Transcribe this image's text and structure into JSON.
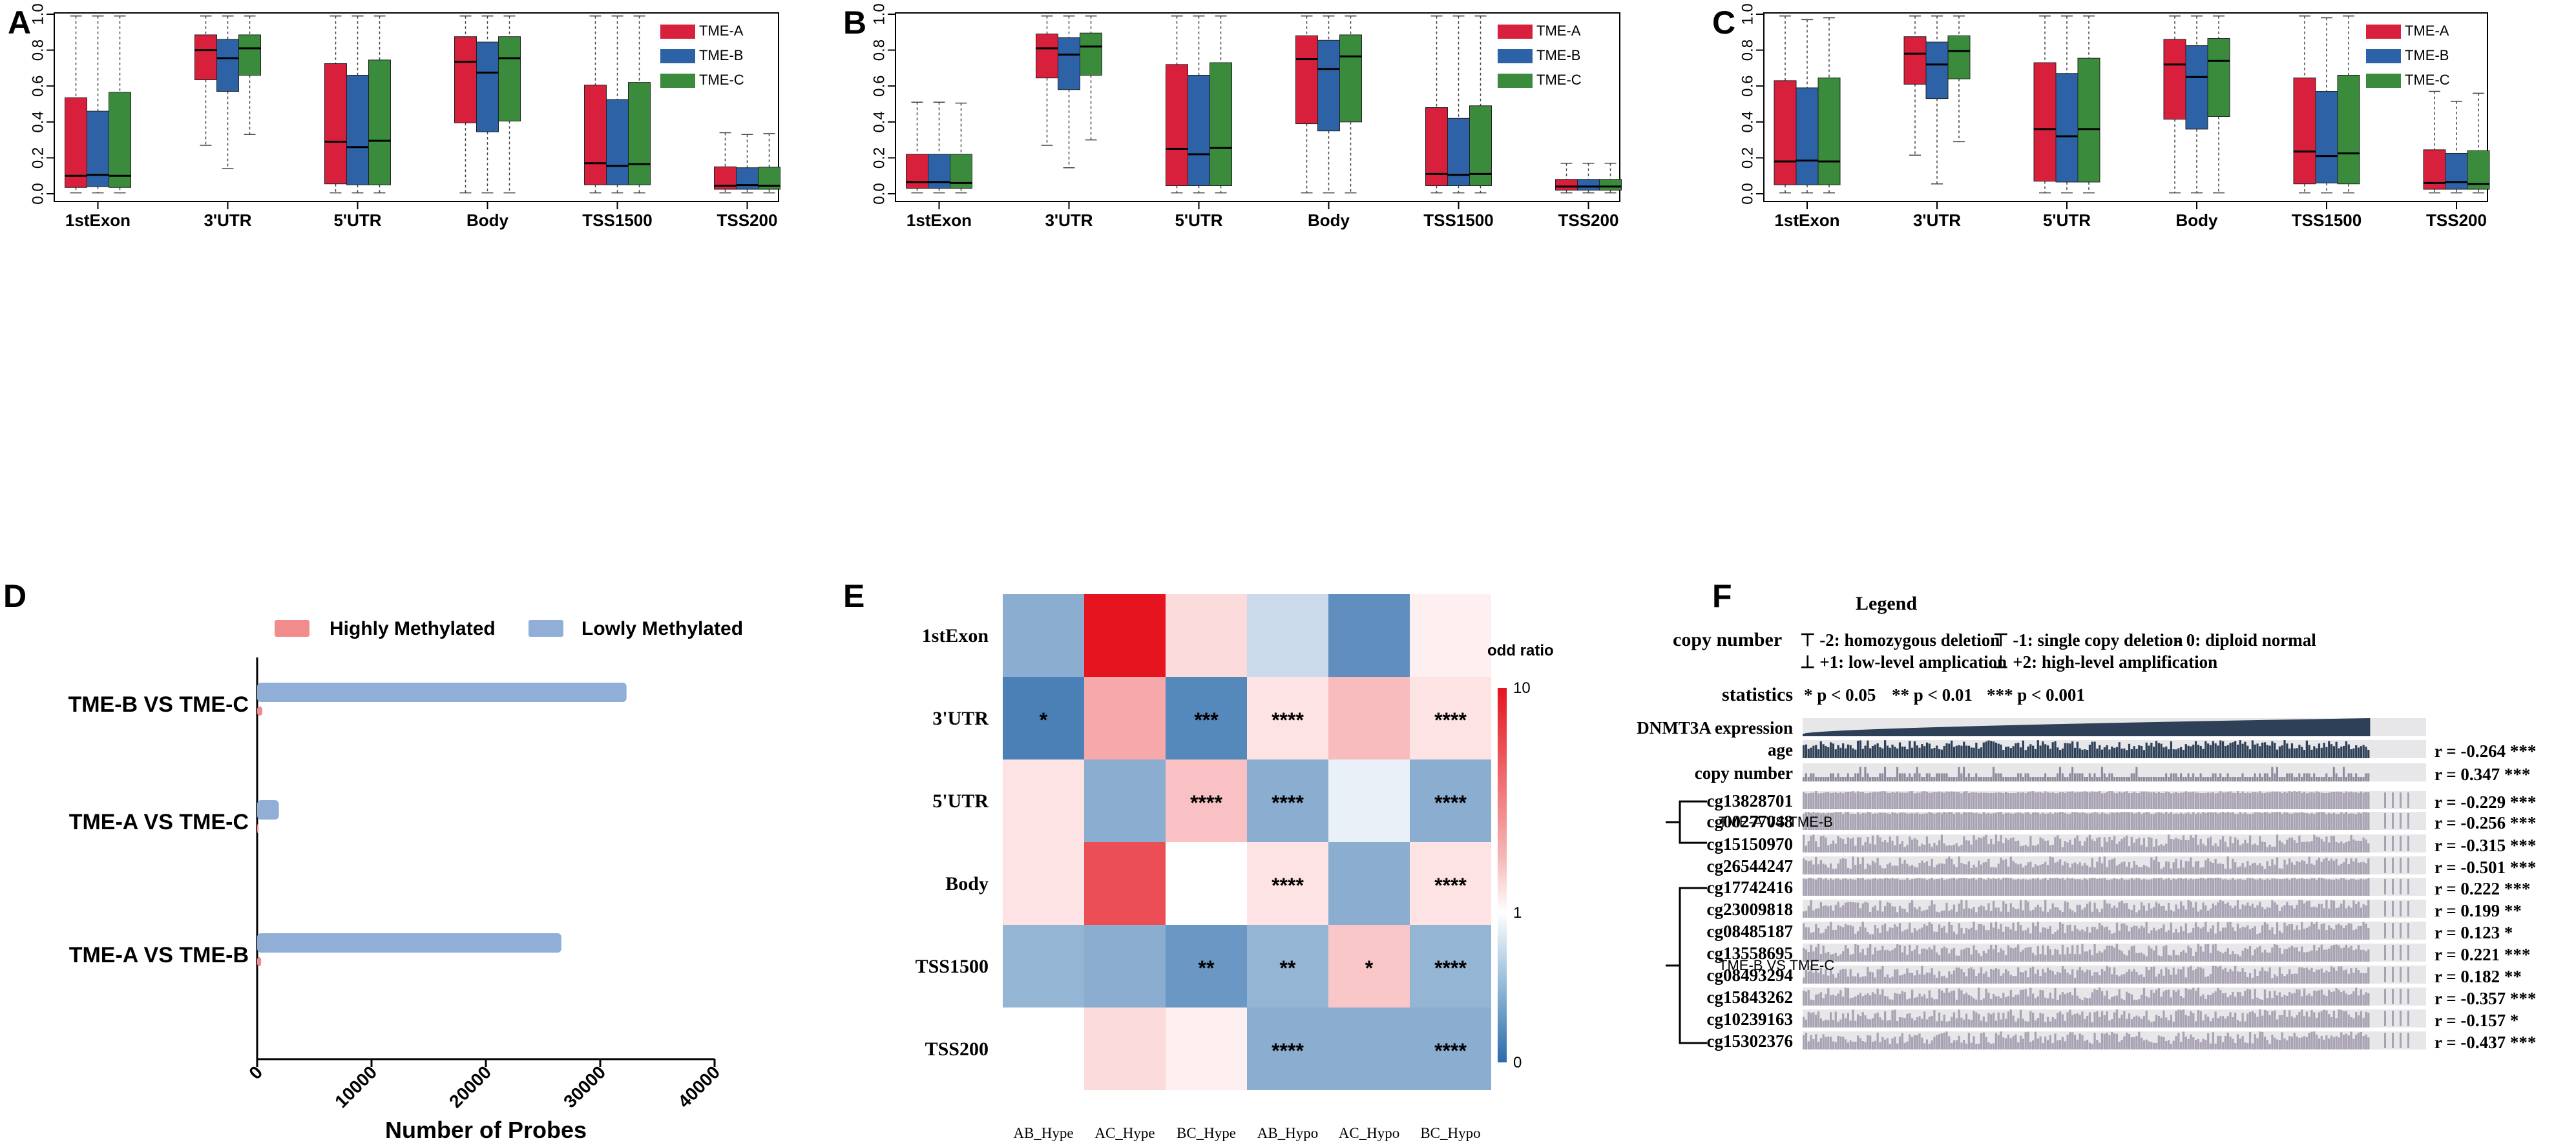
{
  "colors": {
    "tme_a": "#D81F3C",
    "tme_b": "#2E62A6",
    "tme_c": "#3A8C3C",
    "high": "#F28C8C",
    "low": "#91AED6",
    "track": "#A8A2B2",
    "dark": "#2E4057"
  },
  "panels": {
    "A": "A",
    "B": "B",
    "C": "C",
    "D": "D",
    "E": "E",
    "F": "F"
  },
  "chart_data": [
    {
      "panel": "A",
      "type": "boxplot",
      "categories": [
        "1stExon",
        "3'UTR",
        "5'UTR",
        "Body",
        "TSS1500",
        "TSS200"
      ],
      "legend": [
        "TME-A",
        "TME-B",
        "TME-C"
      ],
      "ylim": [
        0,
        1
      ],
      "yticks": [
        "0.0",
        "0.2",
        "0.4",
        "0.6",
        "0.8",
        "1.0"
      ],
      "series": [
        {
          "name": "TME-A",
          "boxes": [
            [
              0.005,
              0.035,
              0.1,
              0.535,
              0.99
            ],
            [
              0.27,
              0.635,
              0.8,
              0.885,
              0.99
            ],
            [
              0.005,
              0.055,
              0.29,
              0.725,
              0.99
            ],
            [
              0.005,
              0.395,
              0.735,
              0.875,
              0.99
            ],
            [
              0.005,
              0.05,
              0.17,
              0.605,
              0.99
            ],
            [
              0.005,
              0.025,
              0.045,
              0.15,
              0.34
            ]
          ]
        },
        {
          "name": "TME-B",
          "boxes": [
            [
              0.005,
              0.04,
              0.105,
              0.46,
              0.99
            ],
            [
              0.14,
              0.57,
              0.755,
              0.86,
              0.99
            ],
            [
              0.005,
              0.05,
              0.26,
              0.66,
              0.99
            ],
            [
              0.005,
              0.345,
              0.675,
              0.845,
              0.99
            ],
            [
              0.005,
              0.05,
              0.155,
              0.525,
              0.99
            ],
            [
              0.005,
              0.025,
              0.048,
              0.145,
              0.33
            ]
          ]
        },
        {
          "name": "TME-C",
          "boxes": [
            [
              0.005,
              0.035,
              0.1,
              0.565,
              0.99
            ],
            [
              0.33,
              0.66,
              0.81,
              0.885,
              0.99
            ],
            [
              0.005,
              0.05,
              0.295,
              0.745,
              0.99
            ],
            [
              0.005,
              0.405,
              0.755,
              0.875,
              0.99
            ],
            [
              0.005,
              0.05,
              0.165,
              0.62,
              0.99
            ],
            [
              0.005,
              0.025,
              0.045,
              0.148,
              0.335
            ]
          ]
        }
      ]
    },
    {
      "panel": "B",
      "type": "boxplot",
      "categories": [
        "1stExon",
        "3'UTR",
        "5'UTR",
        "Body",
        "TSS1500",
        "TSS200"
      ],
      "legend": [
        "TME-A",
        "TME-B",
        "TME-C"
      ],
      "ylim": [
        0,
        1
      ],
      "yticks": [
        "0.0",
        "0.2",
        "0.4",
        "0.6",
        "0.8",
        "1.0"
      ],
      "series": [
        {
          "name": "TME-A",
          "boxes": [
            [
              0.005,
              0.03,
              0.065,
              0.22,
              0.51
            ],
            [
              0.27,
              0.645,
              0.81,
              0.89,
              0.99
            ],
            [
              0.005,
              0.045,
              0.25,
              0.72,
              0.99
            ],
            [
              0.005,
              0.39,
              0.75,
              0.88,
              0.99
            ],
            [
              0.005,
              0.045,
              0.11,
              0.48,
              0.99
            ],
            [
              0.005,
              0.02,
              0.04,
              0.08,
              0.17
            ]
          ]
        },
        {
          "name": "TME-B",
          "boxes": [
            [
              0.005,
              0.03,
              0.065,
              0.22,
              0.51
            ],
            [
              0.145,
              0.58,
              0.775,
              0.87,
              0.99
            ],
            [
              0.005,
              0.045,
              0.22,
              0.66,
              0.99
            ],
            [
              0.005,
              0.35,
              0.695,
              0.855,
              0.99
            ],
            [
              0.005,
              0.045,
              0.105,
              0.42,
              0.99
            ],
            [
              0.005,
              0.02,
              0.04,
              0.08,
              0.17
            ]
          ]
        },
        {
          "name": "TME-C",
          "boxes": [
            [
              0.005,
              0.03,
              0.06,
              0.22,
              0.505
            ],
            [
              0.3,
              0.66,
              0.82,
              0.895,
              0.99
            ],
            [
              0.005,
              0.045,
              0.255,
              0.73,
              0.99
            ],
            [
              0.005,
              0.4,
              0.765,
              0.885,
              0.99
            ],
            [
              0.005,
              0.045,
              0.11,
              0.49,
              0.99
            ],
            [
              0.005,
              0.02,
              0.04,
              0.08,
              0.17
            ]
          ]
        }
      ]
    },
    {
      "panel": "C",
      "type": "boxplot",
      "categories": [
        "1stExon",
        "3'UTR",
        "5'UTR",
        "Body",
        "TSS1500",
        "TSS200"
      ],
      "legend": [
        "TME-A",
        "TME-B",
        "TME-C"
      ],
      "ylim": [
        0,
        1
      ],
      "yticks": [
        "0.0",
        "0.2",
        "0.4",
        "0.6",
        "0.8",
        "1.0"
      ],
      "series": [
        {
          "name": "TME-A",
          "boxes": [
            [
              0.005,
              0.05,
              0.18,
              0.63,
              0.99
            ],
            [
              0.215,
              0.61,
              0.78,
              0.875,
              0.99
            ],
            [
              0.005,
              0.07,
              0.36,
              0.73,
              0.99
            ],
            [
              0.005,
              0.415,
              0.72,
              0.86,
              0.99
            ],
            [
              0.005,
              0.055,
              0.235,
              0.645,
              0.99
            ],
            [
              0.005,
              0.025,
              0.06,
              0.245,
              0.57
            ]
          ]
        },
        {
          "name": "TME-B",
          "boxes": [
            [
              0.005,
              0.05,
              0.185,
              0.59,
              0.97
            ],
            [
              0.055,
              0.53,
              0.72,
              0.845,
              0.99
            ],
            [
              0.005,
              0.065,
              0.32,
              0.67,
              0.99
            ],
            [
              0.005,
              0.36,
              0.65,
              0.825,
              0.99
            ],
            [
              0.005,
              0.06,
              0.21,
              0.57,
              0.98
            ],
            [
              0.005,
              0.025,
              0.065,
              0.225,
              0.515
            ]
          ]
        },
        {
          "name": "TME-C",
          "boxes": [
            [
              0.005,
              0.05,
              0.18,
              0.645,
              0.98
            ],
            [
              0.29,
              0.64,
              0.795,
              0.88,
              0.99
            ],
            [
              0.005,
              0.065,
              0.36,
              0.755,
              0.99
            ],
            [
              0.005,
              0.43,
              0.74,
              0.865,
              0.99
            ],
            [
              0.005,
              0.055,
              0.225,
              0.66,
              0.99
            ],
            [
              0.005,
              0.025,
              0.055,
              0.24,
              0.56
            ]
          ]
        }
      ]
    },
    {
      "panel": "D",
      "type": "bar",
      "categories": [
        "TME-B VS TME-C",
        "TME-A VS TME-C",
        "TME-A VS TME-B"
      ],
      "series": [
        {
          "name": "Highly Methylated",
          "values": [
            450,
            120,
            350
          ]
        },
        {
          "name": "Lowly Methylated",
          "values": [
            32300,
            1900,
            26600
          ]
        }
      ],
      "xlim": [
        0,
        40000
      ],
      "xticks": [
        "0",
        "10000",
        "20000",
        "30000",
        "40000"
      ],
      "xlabel": "Number of Probes"
    },
    {
      "panel": "E",
      "type": "heatmap",
      "rows": [
        "1stExon",
        "3'UTR",
        "5'UTR",
        "Body",
        "TSS1500",
        "TSS200"
      ],
      "cols": [
        "AB_Hype",
        "AC_Hype",
        "BC_Hype",
        "AB_Hypo",
        "AC_Hypo",
        "BC_Hypo"
      ],
      "values": [
        [
          0.45,
          10,
          1.3,
          0.75,
          0.25,
          1.05
        ],
        [
          0.15,
          2.2,
          0.2,
          1.2,
          1.8,
          1.2
        ],
        [
          1.2,
          0.45,
          1.7,
          0.45,
          0.9,
          0.45
        ],
        [
          1.2,
          5.5,
          1,
          1.2,
          0.45,
          1.2
        ],
        [
          0.5,
          0.45,
          0.3,
          0.5,
          1.6,
          0.5
        ],
        [
          1,
          1.3,
          1.05,
          0.45,
          0.45,
          0.45
        ]
      ],
      "stars": [
        [
          "",
          "",
          "",
          "",
          "",
          ""
        ],
        [
          "*",
          "",
          "***",
          "****",
          "",
          "****"
        ],
        [
          "",
          "",
          "****",
          "****",
          "",
          "****"
        ],
        [
          "",
          "",
          "",
          "****",
          "",
          "****"
        ],
        [
          "",
          "",
          "**",
          "**",
          "*",
          "****"
        ],
        [
          "",
          "",
          "",
          "****",
          "",
          "****"
        ]
      ],
      "scale_title": "odd ratio",
      "scale_ticks": [
        "10",
        "1",
        "0"
      ]
    },
    {
      "panel": "F",
      "type": "oncoprint",
      "legend_title": "Legend",
      "legend_cn_label": "copy number",
      "legend_cn_1": "-2: homozygous deletion",
      "legend_cn_2": "-1: single copy deletion",
      "legend_cn_3": "0: diploid normal",
      "legend_cn_4": "+1: low-level amplication",
      "legend_cn_5": "+2: high-level amplification",
      "legend_stat_label": "statistics",
      "legend_stat_1": "* p < 0.05",
      "legend_stat_2": "** p < 0.01",
      "legend_stat_3": "*** p < 0.001",
      "tracks": [
        {
          "name": "DNMT3A expression",
          "r": ""
        },
        {
          "name": "age",
          "r": "r = -0.264 ***"
        },
        {
          "name": "copy number",
          "r": "r = 0.347 ***"
        },
        {
          "name": "cg13828701",
          "r": "r = -0.229 ***"
        },
        {
          "name": "cg00277048",
          "r": "r = -0.256 ***"
        },
        {
          "name": "cg15150970",
          "r": "r = -0.315 ***"
        },
        {
          "name": "cg26544247",
          "r": "r = -0.501 ***"
        },
        {
          "name": "cg17742416",
          "r": "r = 0.222 ***"
        },
        {
          "name": "cg23009818",
          "r": "r = 0.199 **"
        },
        {
          "name": "cg08485187",
          "r": "r = 0.123 *"
        },
        {
          "name": "cg13558695",
          "r": "r = 0.221 ***"
        },
        {
          "name": "cg08493294",
          "r": "r = 0.182 **"
        },
        {
          "name": "cg15843262",
          "r": "r = -0.357 ***"
        },
        {
          "name": "cg10239163",
          "r": "r = -0.157 *"
        },
        {
          "name": "cg15302376",
          "r": "r = -0.437 ***"
        }
      ],
      "groups": [
        "TME-A VS TME-B",
        "TME-B VS TME-C"
      ]
    }
  ]
}
